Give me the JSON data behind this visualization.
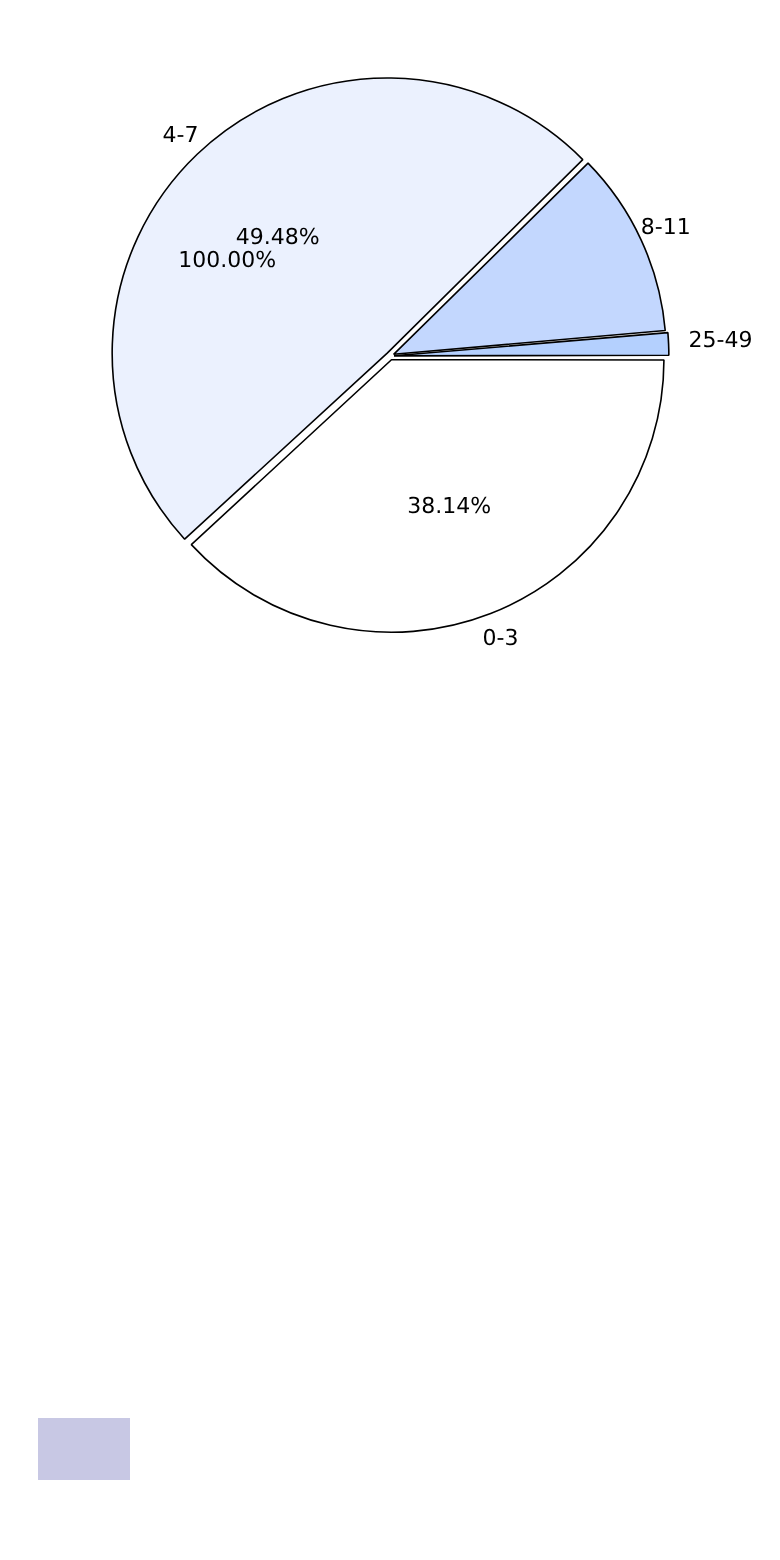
{
  "chart_data": {
    "type": "pie",
    "categories": [
      "0-3",
      "4-7",
      "8-11",
      "25-49"
    ],
    "values": [
      38.14,
      49.48,
      11.0,
      1.38
    ],
    "colors": [
      "#ffffff",
      "#ebf1fe",
      "#c3d7fe",
      "#b4d0fe"
    ],
    "value_labels": [
      "38.14%",
      "49.48%",
      null,
      null
    ],
    "annotations": [
      "100.00%"
    ],
    "legend": false
  }
}
